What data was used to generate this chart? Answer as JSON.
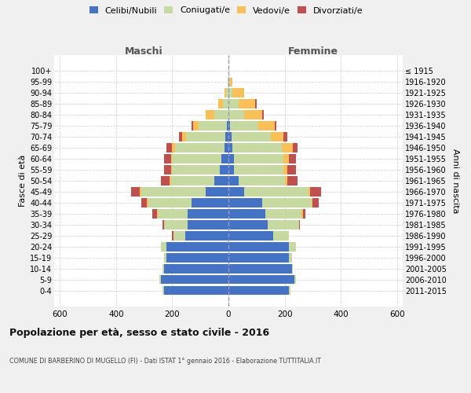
{
  "age_groups": [
    "0-4",
    "5-9",
    "10-14",
    "15-19",
    "20-24",
    "25-29",
    "30-34",
    "35-39",
    "40-44",
    "45-49",
    "50-54",
    "55-59",
    "60-64",
    "65-69",
    "70-74",
    "75-79",
    "80-84",
    "85-89",
    "90-94",
    "95-99",
    "100+"
  ],
  "birth_years": [
    "2011-2015",
    "2006-2010",
    "2001-2005",
    "1996-2000",
    "1991-1995",
    "1986-1990",
    "1981-1985",
    "1976-1980",
    "1971-1975",
    "1966-1970",
    "1961-1965",
    "1956-1960",
    "1951-1955",
    "1946-1950",
    "1941-1945",
    "1936-1940",
    "1931-1935",
    "1926-1930",
    "1921-1925",
    "1916-1920",
    "≤ 1915"
  ],
  "males": {
    "celibi": [
      230,
      240,
      230,
      220,
      220,
      155,
      145,
      145,
      130,
      80,
      50,
      30,
      25,
      15,
      10,
      5,
      0,
      0,
      0,
      0,
      0
    ],
    "coniugati": [
      5,
      5,
      5,
      10,
      20,
      40,
      85,
      105,
      155,
      230,
      155,
      170,
      175,
      175,
      140,
      100,
      50,
      20,
      8,
      2,
      0
    ],
    "vedovi": [
      0,
      0,
      0,
      0,
      0,
      0,
      0,
      5,
      5,
      5,
      5,
      5,
      5,
      10,
      15,
      20,
      30,
      15,
      5,
      0,
      0
    ],
    "divorziati": [
      0,
      0,
      0,
      0,
      0,
      5,
      5,
      15,
      20,
      30,
      30,
      25,
      25,
      20,
      10,
      5,
      0,
      0,
      0,
      0,
      0
    ]
  },
  "females": {
    "nubili": [
      215,
      235,
      225,
      215,
      215,
      160,
      140,
      130,
      120,
      55,
      35,
      20,
      20,
      15,
      10,
      5,
      0,
      0,
      0,
      0,
      0
    ],
    "coniugate": [
      5,
      5,
      5,
      10,
      25,
      55,
      110,
      130,
      175,
      230,
      165,
      175,
      175,
      175,
      140,
      100,
      55,
      35,
      15,
      5,
      0
    ],
    "vedove": [
      0,
      0,
      0,
      0,
      0,
      0,
      0,
      5,
      5,
      5,
      10,
      15,
      20,
      40,
      45,
      60,
      65,
      60,
      40,
      10,
      0
    ],
    "divorziate": [
      0,
      0,
      0,
      0,
      0,
      0,
      5,
      10,
      20,
      40,
      35,
      30,
      25,
      15,
      15,
      5,
      5,
      5,
      0,
      0,
      0
    ]
  },
  "colors": {
    "celibi": "#4472C4",
    "coniugati": "#C5D9A0",
    "vedovi": "#FAC058",
    "divorziati": "#C0504D"
  },
  "xlim": 620,
  "title": "Popolazione per età, sesso e stato civile - 2016",
  "subtitle": "COMUNE DI BARBERINO DI MUGELLO (FI) - Dati ISTAT 1° gennaio 2016 - Elaborazione TUTTITALIA.IT",
  "ylabel_left": "Fasce di età",
  "ylabel_right": "Anni di nascita",
  "legend_labels": [
    "Celibi/Nubili",
    "Coniugati/e",
    "Vedovi/e",
    "Divorziati/e"
  ],
  "bg_color": "#f0f0f0",
  "plot_bg": "#ffffff",
  "grid_color": "#cccccc"
}
